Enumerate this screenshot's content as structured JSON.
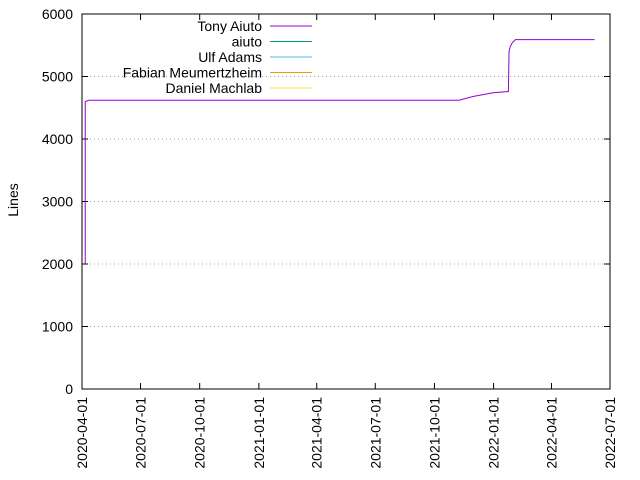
{
  "chart_data": {
    "type": "line",
    "title": "",
    "xlabel": "",
    "ylabel": "Lines",
    "ylim": [
      0,
      6000
    ],
    "xlim": [
      "2020-04-01",
      "2022-07-01"
    ],
    "y_ticks": [
      0,
      1000,
      2000,
      3000,
      4000,
      5000,
      6000
    ],
    "x_ticks": [
      "2020-04-01",
      "2020-07-01",
      "2020-10-01",
      "2021-01-01",
      "2021-04-01",
      "2021-07-01",
      "2021-10-01",
      "2022-01-01",
      "2022-04-01",
      "2022-07-01"
    ],
    "grid": "horizontal dotted",
    "legend_position": "top-left",
    "series": [
      {
        "name": "Tony Aiuto",
        "color": "#9400d3",
        "points": [
          [
            "2020-04-06",
            2000
          ],
          [
            "2020-04-06",
            4600
          ],
          [
            "2020-04-12",
            4620
          ],
          [
            "2021-11-08",
            4620
          ],
          [
            "2021-11-30",
            4680
          ],
          [
            "2021-12-31",
            4740
          ],
          [
            "2022-01-24",
            4760
          ],
          [
            "2022-01-25",
            5400
          ],
          [
            "2022-01-27",
            5480
          ],
          [
            "2022-01-30",
            5540
          ],
          [
            "2022-02-04",
            5590
          ],
          [
            "2022-06-07",
            5590
          ]
        ]
      },
      {
        "name": "aiuto",
        "color": "#009e73",
        "points": []
      },
      {
        "name": "Ulf Adams",
        "color": "#56b4e9",
        "points": []
      },
      {
        "name": "Fabian Meumertzheim",
        "color": "#e69f00",
        "points": []
      },
      {
        "name": "Daniel Machlab",
        "color": "#f0e442",
        "points": []
      }
    ]
  }
}
